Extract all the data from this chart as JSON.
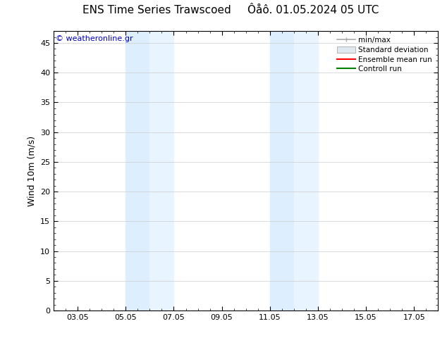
{
  "title_left": "ENS Time Series Trawscoed",
  "title_right": "Ôåô. 01.05.2024 05 UTC",
  "ylabel": "Wind 10m (m/s)",
  "watermark": "© weatheronline.gr",
  "ylim": [
    0,
    47
  ],
  "yticks": [
    0,
    5,
    10,
    15,
    20,
    25,
    30,
    35,
    40,
    45
  ],
  "xtick_labels": [
    "03.05",
    "05.05",
    "07.05",
    "09.05",
    "11.05",
    "13.05",
    "15.05",
    "17.05"
  ],
  "xtick_positions": [
    2,
    4,
    6,
    8,
    10,
    12,
    14,
    16
  ],
  "xlim": [
    1,
    17
  ],
  "shaded_bands": [
    {
      "x_start": 4,
      "x_end": 5,
      "color": "#ddeeff"
    },
    {
      "x_start": 5,
      "x_end": 6,
      "color": "#e8f4ff"
    },
    {
      "x_start": 10,
      "x_end": 11,
      "color": "#ddeeff"
    },
    {
      "x_start": 11,
      "x_end": 12,
      "color": "#e8f4ff"
    }
  ],
  "bg_color": "#ffffff",
  "plot_bg_color": "#ffffff",
  "legend_entries": [
    "min/max",
    "Standard deviation",
    "Ensemble mean run",
    "Controll run"
  ],
  "legend_line_colors": [
    "#aaaaaa",
    "#cccccc",
    "#ff0000",
    "#008000"
  ],
  "grid_color": "#cccccc",
  "border_color": "#000000",
  "title_fontsize": 11,
  "label_fontsize": 9,
  "tick_fontsize": 8,
  "watermark_color": "#0000cc",
  "minor_tick_count": 3
}
